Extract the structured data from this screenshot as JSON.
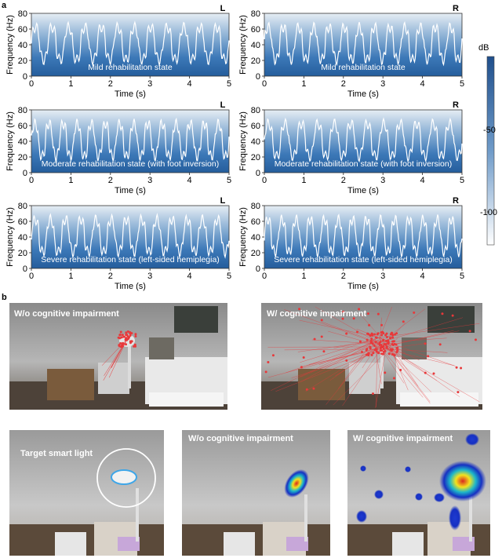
{
  "panel_a_letter": "a",
  "panel_b_letter": "b",
  "spectrograms": {
    "y_axis_label": "Frequency (Hz)",
    "x_axis_label": "Time (s)",
    "y_ticks": [
      "0",
      "20",
      "40",
      "60",
      "80"
    ],
    "x_ticks": [
      "0",
      "1",
      "2",
      "3",
      "4",
      "5"
    ],
    "panels": [
      {
        "side": "L",
        "label": "Mild rehabilitation state"
      },
      {
        "side": "R",
        "label": "Mild rehabilitation state"
      },
      {
        "side": "L",
        "label": "Moderate rehabilitation state (with foot inversion)"
      },
      {
        "side": "R",
        "label": "Moderate rehabilitation state (with foot inversion)"
      },
      {
        "side": "L",
        "label": "Severe rehabilitation state (left-sided hemiplegia)"
      },
      {
        "side": "R",
        "label": "Severe rehabilitation state (left-sided hemiplegia)"
      }
    ]
  },
  "colorbar": {
    "unit": "dB",
    "ticks": [
      "-50",
      "-100"
    ],
    "top_color": "#1f4f8c",
    "bottom_color": "#ffffff"
  },
  "gaze_photos": {
    "top_left_label": "W/o cognitive impairment",
    "top_right_label": "W/ cognitive impairment",
    "bottom_left_label": "Target smart light",
    "bottom_mid_label": "W/o cognitive impairment",
    "bottom_right_label": "W/ cognitive impairment",
    "gaze_color": "#e8383a"
  }
}
